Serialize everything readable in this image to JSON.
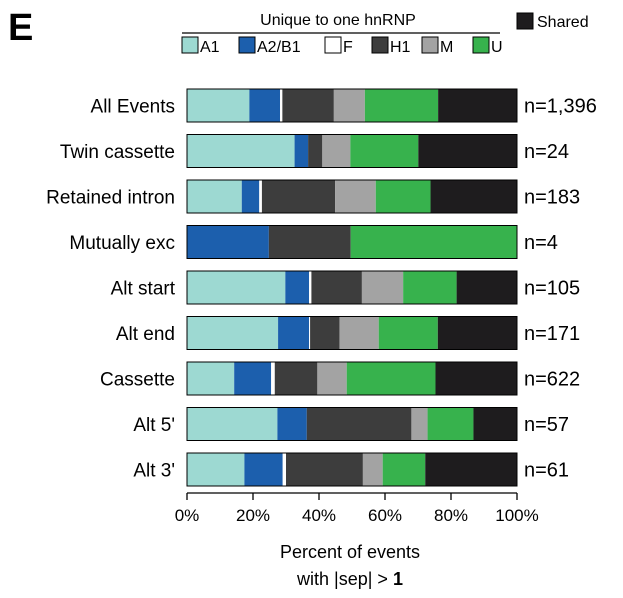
{
  "chart_data": {
    "type": "bar",
    "stacked": true,
    "orientation": "horizontal",
    "panel_label": "E",
    "legend": {
      "group_title": "Unique to one hnRNP",
      "shared_label": "Shared",
      "placement": "top"
    },
    "categories": [
      "All Events",
      "Twin cassette",
      "Retained intron",
      "Mutually exc",
      "Alt start",
      "Alt end",
      "Cassette",
      "Alt 5'",
      "Alt 3'"
    ],
    "n_labels": [
      "n=1,396",
      "n=24",
      "n=183",
      "n=4",
      "n=105",
      "n=171",
      "n=622",
      "n=57",
      "n=61"
    ],
    "series": [
      {
        "name": "A1",
        "color": "#9dd9d2",
        "values": [
          18.9,
          32.6,
          16.6,
          0,
          29.8,
          27.6,
          14.3,
          27.4,
          17.4
        ]
      },
      {
        "name": "A2/B1",
        "color": "#1c5fad",
        "values": [
          9.3,
          4.1,
          5.3,
          24.8,
          7.2,
          9.4,
          11.2,
          8.9,
          11.6
        ]
      },
      {
        "name": "F",
        "color": "#ffffff",
        "values": [
          0.7,
          0,
          0.8,
          0,
          0.7,
          0.3,
          1.1,
          0,
          1.0
        ]
      },
      {
        "name": "H1",
        "color": "#3d3d3d",
        "values": [
          15.6,
          4.3,
          22.2,
          24.8,
          15.3,
          8.9,
          12.9,
          31.7,
          23.3
        ]
      },
      {
        "name": "M",
        "color": "#a3a3a3",
        "values": [
          9.4,
          8.5,
          12.3,
          0,
          12.5,
          11.9,
          8.9,
          4.9,
          6.0
        ]
      },
      {
        "name": "U",
        "color": "#37b24d",
        "values": [
          22.2,
          20.6,
          16.6,
          50.4,
          16.2,
          17.9,
          26.9,
          13.9,
          12.9
        ]
      },
      {
        "name": "Shared",
        "color": "#1e1c1e",
        "values": [
          23.9,
          29.9,
          26.2,
          0,
          18.3,
          24.0,
          24.7,
          13.2,
          27.8
        ]
      }
    ],
    "xlim": [
      0,
      100
    ],
    "xticks": [
      "0%",
      "20%",
      "40%",
      "60%",
      "80%",
      "100%"
    ],
    "xlabel_line1": "Percent of  events",
    "xlabel_line2_prefix": "with |sep| > ",
    "xlabel_line2_bold": "1"
  }
}
